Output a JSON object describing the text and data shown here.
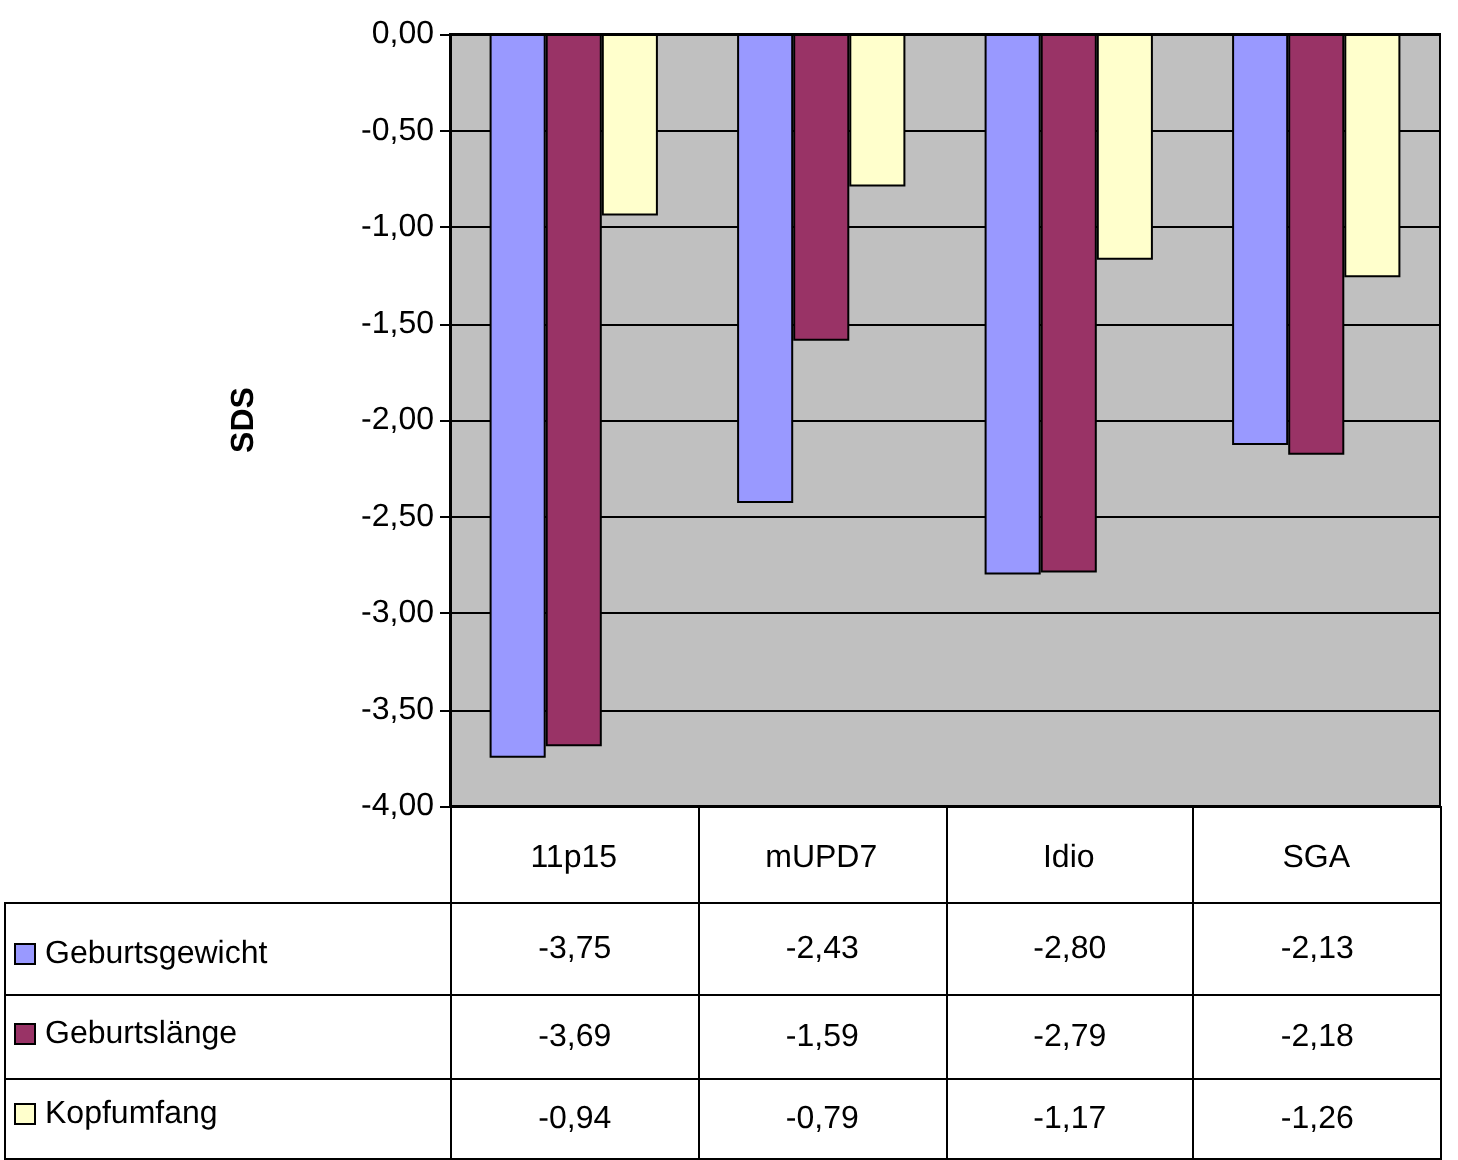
{
  "chart_data": {
    "type": "bar",
    "ylabel": "SDS",
    "categories": [
      "11p15",
      "mUPD7",
      "Idio",
      "SGA"
    ],
    "series": [
      {
        "name": "Geburtsgewicht",
        "color": "#9999ff",
        "values": [
          -3.75,
          -2.43,
          -2.8,
          -2.13
        ],
        "value_labels": [
          "-3,75",
          "-2,43",
          "-2,80",
          "-2,13"
        ]
      },
      {
        "name": "Geburtslänge",
        "color": "#993366",
        "values": [
          -3.69,
          -1.59,
          -2.79,
          -2.18
        ],
        "value_labels": [
          "-3,69",
          "-1,59",
          "-2,79",
          "-2,18"
        ]
      },
      {
        "name": "Kopfumfang",
        "color": "#ffffcc",
        "values": [
          -0.94,
          -0.79,
          -1.17,
          -1.26
        ],
        "value_labels": [
          "-0,94",
          "-0,79",
          "-1,17",
          "-1,26"
        ]
      }
    ],
    "ylim": [
      -4,
      0
    ],
    "yticks": [
      {
        "value": -4,
        "label": "-4,00"
      },
      {
        "value": -3.5,
        "label": "-3,50"
      },
      {
        "value": -3,
        "label": "-3,00"
      },
      {
        "value": -2.5,
        "label": "-2,50"
      },
      {
        "value": -2,
        "label": "-2,00"
      },
      {
        "value": -1.5,
        "label": "-1,50"
      },
      {
        "value": -1,
        "label": "-1,00"
      },
      {
        "value": -0.5,
        "label": "-0,50"
      },
      {
        "value": 0,
        "label": "0,00"
      }
    ],
    "grid": "y",
    "legend": "bottom left"
  }
}
